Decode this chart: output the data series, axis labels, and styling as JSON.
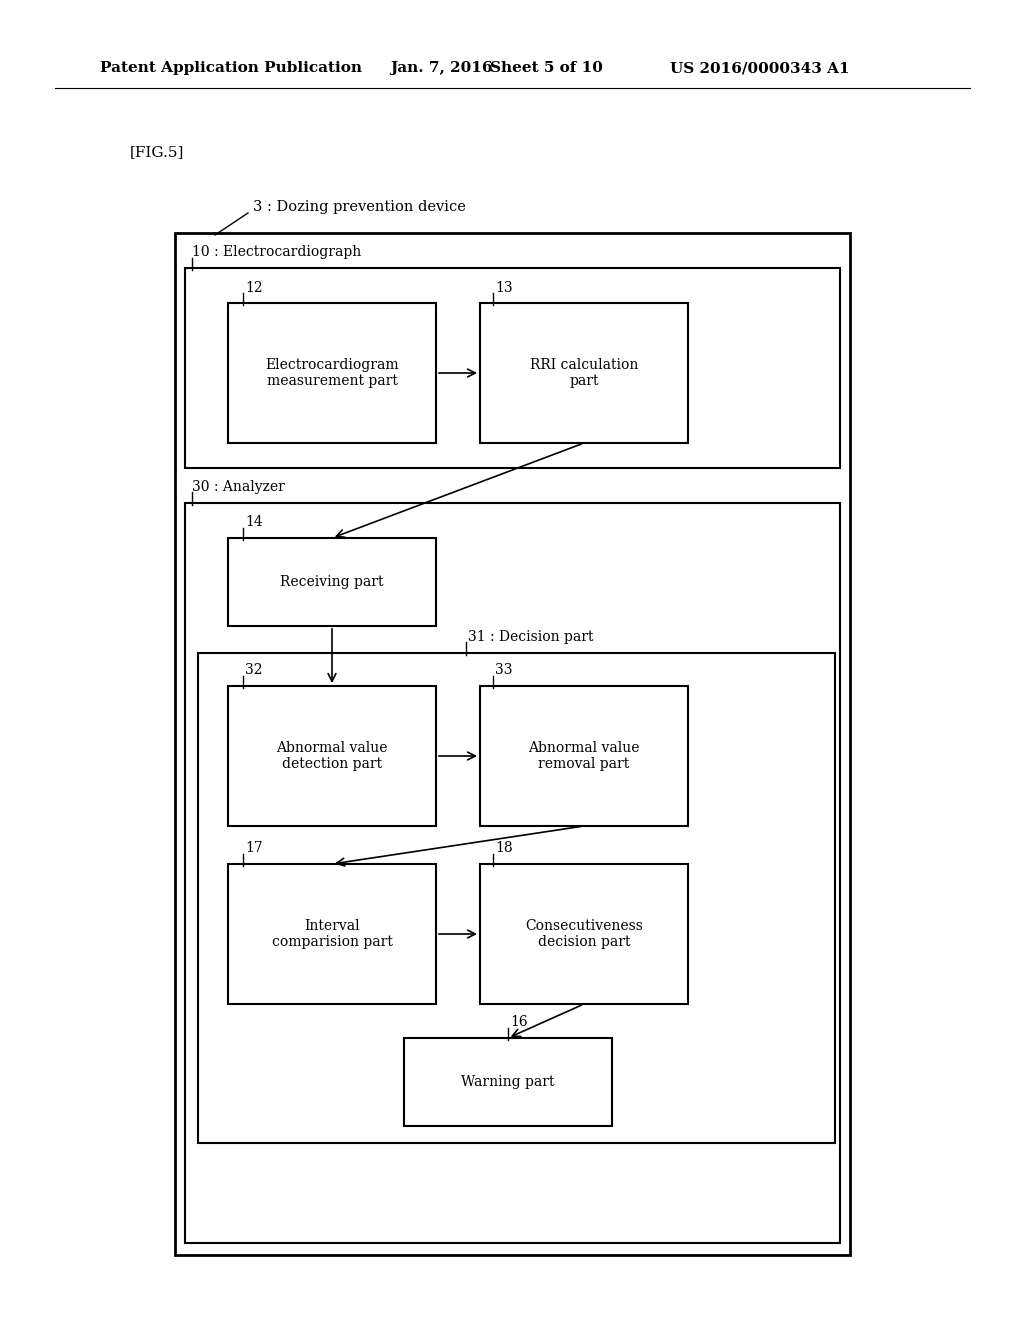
{
  "bg_color": "#ffffff",
  "header_text": "Patent Application Publication",
  "header_date": "Jan. 7, 2016",
  "header_sheet": "Sheet 5 of 10",
  "header_patent": "US 2016/0000343 A1",
  "fig_label": "[FIG.5]",
  "label_3": "3 : Dozing prevention device",
  "label_10": "10 : Electrocardiograph",
  "label_30": "30 : Analyzer",
  "label_31": "31 : Decision part",
  "label_12": "12",
  "label_13": "13",
  "label_14": "14",
  "label_16": "16",
  "label_17": "17",
  "label_18": "18",
  "label_32": "32",
  "label_33": "33",
  "box_ecg_text": "Electrocardiogram\nmeasurement part",
  "box_rri_text": "RRI calculation\npart",
  "box_recv_text": "Receiving part",
  "box_abndet_text": "Abnormal value\ndetection part",
  "box_abnrem_text": "Abnormal value\nremoval part",
  "box_interval_text": "Interval\ncomparision part",
  "box_consec_text": "Consecutiveness\ndecision part",
  "box_warning_text": "Warning part"
}
